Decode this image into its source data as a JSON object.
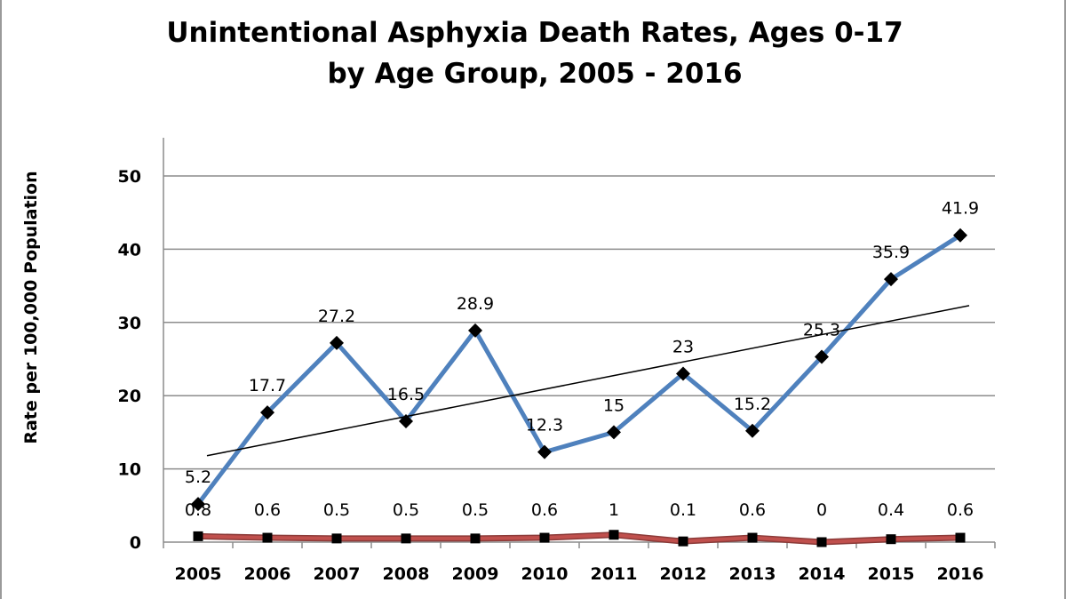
{
  "chart_data": {
    "type": "line",
    "title": [
      "Unintentional Asphyxia Death Rates, Ages 0-17",
      "by Age Group, 2005 - 2016"
    ],
    "xlabel": "",
    "ylabel": "Rate per 100,000 Population",
    "ylim": [
      0,
      50
    ],
    "y_ticks": [
      0,
      10,
      20,
      30,
      40,
      50
    ],
    "grid": true,
    "categories": [
      "2005",
      "2006",
      "2007",
      "2008",
      "2009",
      "2010",
      "2011",
      "2012",
      "2013",
      "2014",
      "2015",
      "2016"
    ],
    "series": [
      {
        "values": [
          5.2,
          17.7,
          27.2,
          16.5,
          28.9,
          12.3,
          15,
          23,
          15.2,
          25.3,
          35.9,
          41.9
        ],
        "labels": [
          "5.2",
          "17.7",
          "27.2",
          "16.5",
          "28.9",
          "12.3",
          "15",
          "23",
          "15.2",
          "25.3",
          "35.9",
          "41.9"
        ],
        "color": "#4f81bd",
        "marker": "diamond"
      },
      {
        "values": [
          0.8,
          0.6,
          0.5,
          0.5,
          0.5,
          0.6,
          1,
          0.1,
          0.6,
          0,
          0.4,
          0.6
        ],
        "labels": [
          "0.8",
          "0.6",
          "0.5",
          "0.5",
          "0.5",
          "0.6",
          "1",
          "0.1",
          "0.6",
          "0",
          "0.4",
          "0.6"
        ],
        "color": "#c0504d",
        "marker": "square"
      }
    ],
    "trendline": {
      "series_index": 0,
      "type": "linear",
      "start": 11.8,
      "end": 32.3,
      "color": "#000000"
    }
  }
}
